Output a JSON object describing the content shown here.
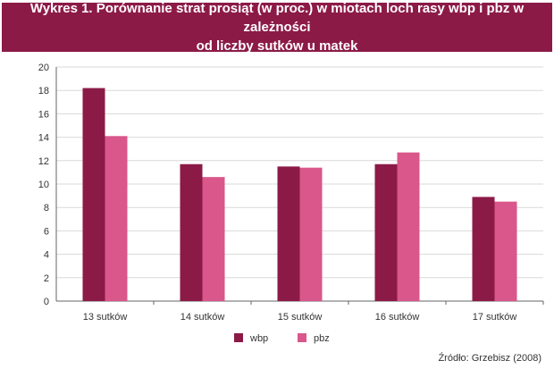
{
  "title": {
    "line1": "Wykres 1. Porównanie strat prosiąt (w proc.) w miotach loch rasy wbp i pbz w zależności",
    "line2": "od liczby sutków u matek"
  },
  "source": "Źródło: Grzebisz (2008)",
  "colors": {
    "title_bg": "#8c1a47",
    "wbp": "#8c1a47",
    "pbz": "#d9578a",
    "grid": "#d9d9d9",
    "axis": "#666666"
  },
  "chart_data": {
    "type": "bar",
    "categories": [
      "13 sutków",
      "14 sutków",
      "15 sutków",
      "16 sutków",
      "17 sutków"
    ],
    "series": [
      {
        "name": "wbp",
        "values": [
          18.2,
          11.7,
          11.5,
          11.7,
          8.9
        ]
      },
      {
        "name": "pbz",
        "values": [
          14.1,
          10.6,
          11.4,
          12.7,
          8.5
        ]
      }
    ],
    "yticks": [
      "0",
      "2",
      "4",
      "6",
      "8",
      "10",
      "12",
      "14",
      "16",
      "18",
      "20"
    ],
    "ylim": [
      0,
      20
    ],
    "grid": true,
    "legend": "bottom"
  }
}
